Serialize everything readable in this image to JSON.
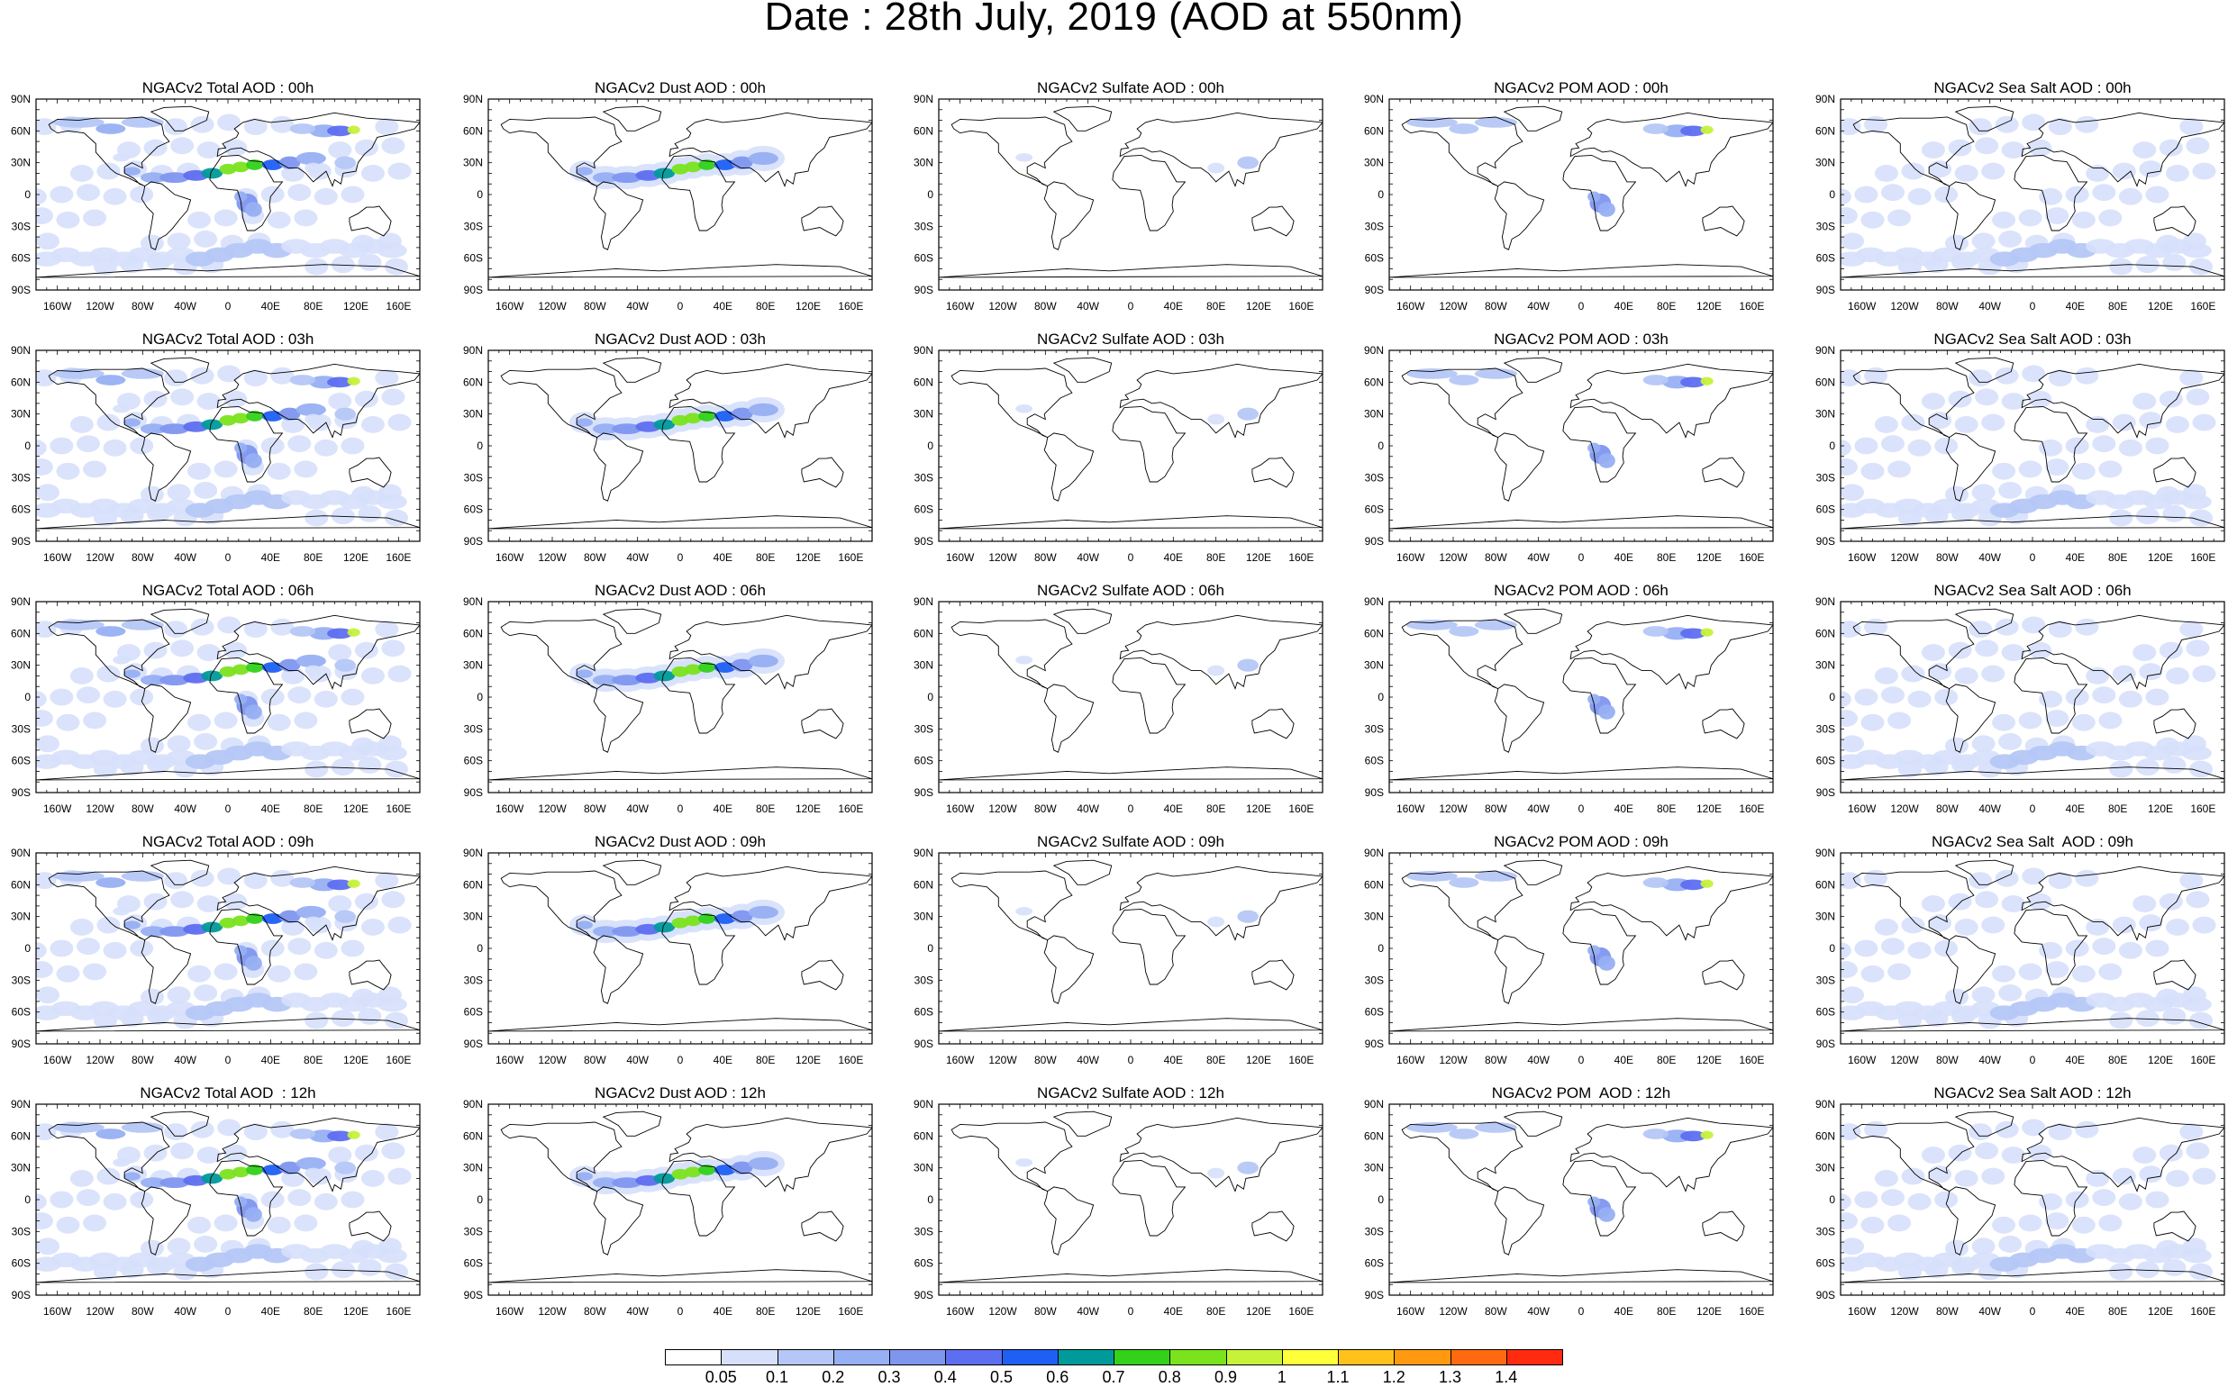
{
  "title": "Date : 28th July, 2019 (AOD at 550nm)",
  "axis": {
    "lat_labels": [
      "90N",
      "60N",
      "30N",
      "0",
      "30S",
      "60S",
      "90S"
    ],
    "lon_labels": [
      "160W",
      "120W",
      "80W",
      "40W",
      "0",
      "40E",
      "80E",
      "120E",
      "160E"
    ]
  },
  "species": [
    {
      "key": "total",
      "name": "Total"
    },
    {
      "key": "dust",
      "name": "Dust"
    },
    {
      "key": "sulfate",
      "name": "Sulfate"
    },
    {
      "key": "pom",
      "name": "POM"
    },
    {
      "key": "seasalt",
      "name": "Sea Salt"
    }
  ],
  "panel_titles": [
    [
      "NGACv2 Total AOD : 00h",
      "NGACv2 Dust AOD : 00h",
      "NGACv2 Sulfate AOD : 00h",
      "NGACv2 POM AOD : 00h",
      "NGACv2 Sea Salt AOD : 00h"
    ],
    [
      "NGACv2 Total AOD : 03h",
      "NGACv2 Dust AOD : 03h",
      "NGACv2 Sulfate AOD : 03h",
      "NGACv2 POM AOD : 03h",
      "NGACv2 Sea Salt AOD : 03h"
    ],
    [
      "NGACv2 Total AOD : 06h",
      "NGACv2 Dust AOD : 06h",
      "NGACv2 Sulfate AOD : 06h",
      "NGACv2 POM AOD : 06h",
      "NGACv2 Sea Salt AOD : 06h"
    ],
    [
      "NGACv2 Total AOD : 09h",
      "NGACv2 Dust AOD : 09h",
      "NGACv2 Sulfate AOD : 09h",
      "NGACv2 POM AOD : 09h",
      "NGACv2 Sea Salt  AOD : 09h"
    ],
    [
      "NGACv2 Total AOD  : 12h",
      "NGACv2 Dust AOD : 12h",
      "NGACv2 Sulfate AOD : 12h",
      "NGACv2 POM  AOD : 12h",
      "NGACv2 Sea Salt AOD : 12h"
    ]
  ],
  "colorbar": {
    "labels": [
      "0.05",
      "0.1",
      "0.2",
      "0.3",
      "0.4",
      "0.5",
      "0.6",
      "0.7",
      "0.8",
      "0.9",
      "1",
      "1.1",
      "1.2",
      "1.3",
      "1.4"
    ],
    "colors": [
      "#ffffff",
      "#d6e0fb",
      "#b5c7f7",
      "#97aff3",
      "#7f96ef",
      "#5e6ef0",
      "#1f5ff4",
      "#009a9a",
      "#33d11a",
      "#7be31d",
      "#c6f23a",
      "#ffff3a",
      "#ffc21a",
      "#ff9a10",
      "#ff6a10",
      "#ff2a10"
    ]
  }
}
